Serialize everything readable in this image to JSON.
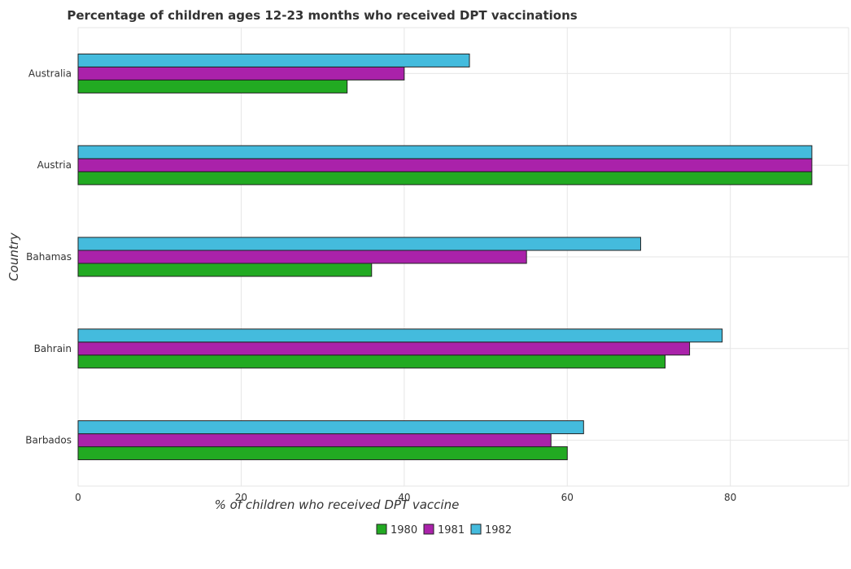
{
  "chart_data": {
    "type": "bar",
    "orientation": "horizontal",
    "title": "Percentage of children ages 12-23 months who received DPT vaccinations",
    "xlabel": "% of children who received DPT vaccine",
    "ylabel": "Country",
    "categories": [
      "Australia",
      "Austria",
      "Bahamas",
      "Bahrain",
      "Barbados"
    ],
    "series": [
      {
        "name": "1980",
        "color": "#22aa22",
        "values": [
          33,
          90,
          36,
          72,
          60
        ]
      },
      {
        "name": "1981",
        "color": "#aa22aa",
        "values": [
          40,
          90,
          55,
          75,
          58
        ]
      },
      {
        "name": "1982",
        "color": "#44bbdd",
        "values": [
          48,
          90,
          69,
          79,
          62
        ]
      }
    ],
    "xticks": [
      "0",
      "20",
      "40",
      "60",
      "80"
    ],
    "xlim": [
      0,
      94.5
    ],
    "grid": true,
    "legend_position": "bottom-center"
  }
}
